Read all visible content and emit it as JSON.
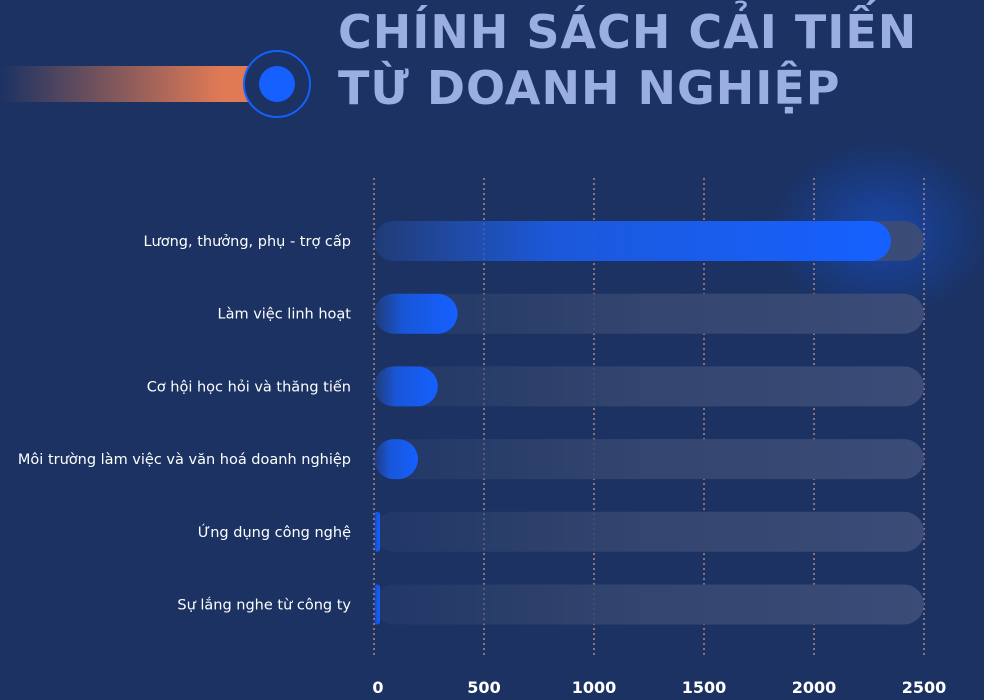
{
  "title": {
    "line1": "CHÍNH SÁCH CẢI TIẾN",
    "line2": "TỪ DOANH NGHIỆP"
  },
  "colors": {
    "background": "#1b3263",
    "bar": "#1560ff",
    "track": "#34466f",
    "grid": "#d79a83",
    "title": "#9aaee2",
    "accent_orange": "#e07a55"
  },
  "chart_data": {
    "type": "bar",
    "orientation": "horizontal",
    "title": "CHÍNH SÁCH CẢI TIẾN TỪ DOANH NGHIỆP",
    "categories": [
      "Lương, thưởng, phụ - trợ cấp",
      "Làm việc linh hoạt",
      "Cơ hội học hỏi và thăng tiến",
      "Môi trường làm việc và văn hoá doanh nghiệp",
      "Ứng dụng công nghệ",
      "Sự lắng nghe từ công ty"
    ],
    "values": [
      2350,
      380,
      290,
      200,
      25,
      25
    ],
    "xlim": [
      0,
      2500
    ],
    "xticks": [
      "0",
      "500",
      "1000",
      "1500",
      "2000",
      "2500"
    ],
    "grid": true,
    "legend": "none"
  }
}
